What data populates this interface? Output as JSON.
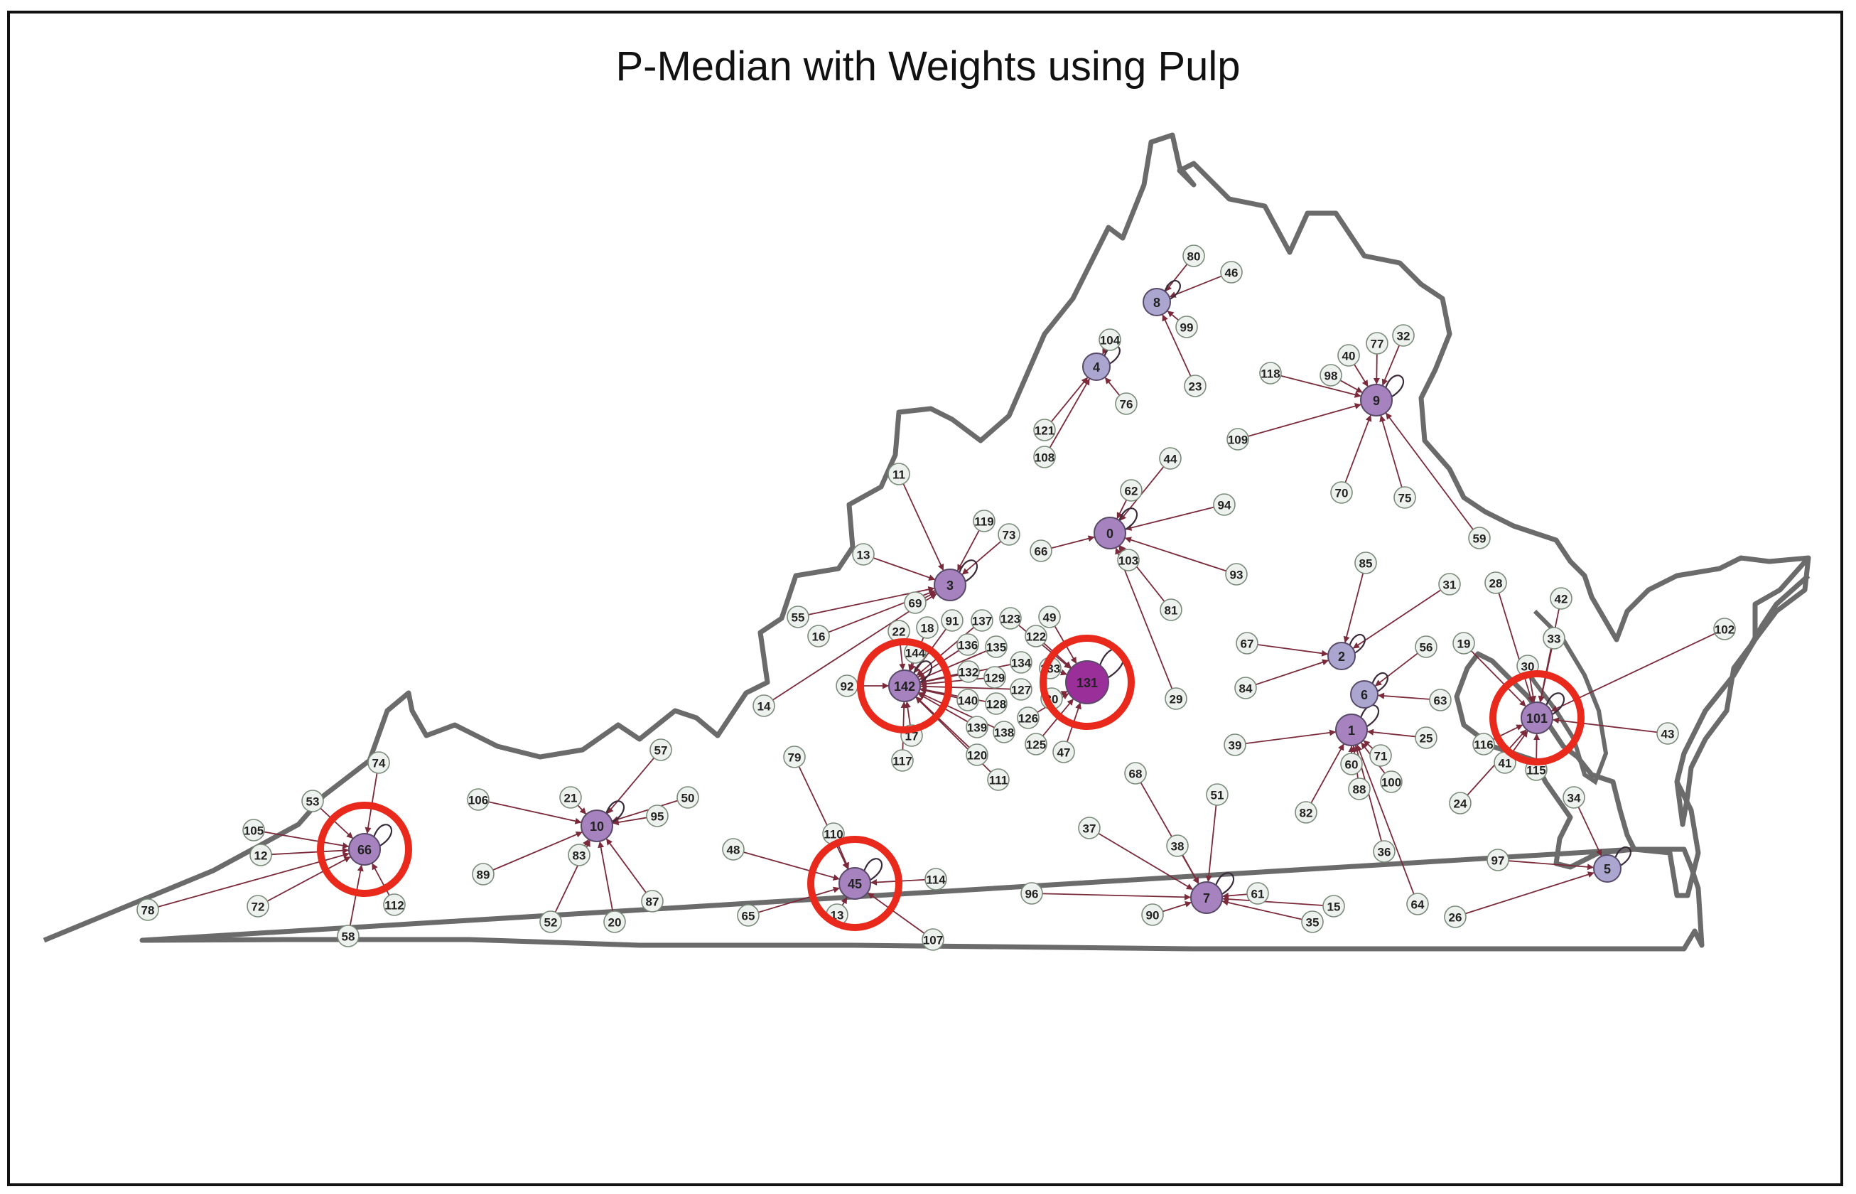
{
  "title": "P-Median with Weights using Pulp",
  "colors": {
    "outline": "#6b6b6b",
    "edge": "#7a2a3a",
    "node_fill": "#eef2ee",
    "node_stroke": "#7a8a7a",
    "highlight_ring": "#e8291c",
    "center_light": "#aaa6d0",
    "center_mid": "#a683bf",
    "center_dark": "#9a2f9a"
  },
  "centers": [
    {
      "id": "0",
      "shade": "mid"
    },
    {
      "id": "1",
      "shade": "mid"
    },
    {
      "id": "2",
      "shade": "light"
    },
    {
      "id": "3",
      "shade": "mid"
    },
    {
      "id": "4",
      "shade": "light"
    },
    {
      "id": "5",
      "shade": "light"
    },
    {
      "id": "6",
      "shade": "light"
    },
    {
      "id": "7",
      "shade": "mid"
    },
    {
      "id": "8",
      "shade": "light"
    },
    {
      "id": "9",
      "shade": "mid"
    },
    {
      "id": "10",
      "shade": "mid"
    },
    {
      "id": "45",
      "shade": "mid"
    },
    {
      "id": "66",
      "shade": "mid"
    },
    {
      "id": "101",
      "shade": "mid"
    },
    {
      "id": "131",
      "shade": "dark"
    },
    {
      "id": "142",
      "shade": "mid"
    }
  ],
  "highlighted_centers": [
    "66",
    "45",
    "142",
    "131",
    "101"
  ],
  "assignments": {
    "0": [
      "62",
      "44",
      "94",
      "66",
      "93",
      "103",
      "81",
      "29"
    ],
    "1": [
      "39",
      "71",
      "25",
      "60",
      "88",
      "100",
      "82",
      "36",
      "64"
    ],
    "2": [
      "85",
      "31",
      "67",
      "84"
    ],
    "3": [
      "11",
      "119",
      "73",
      "13",
      "55",
      "16",
      "69",
      "14"
    ],
    "4": [
      "104",
      "76",
      "121",
      "108"
    ],
    "5": [
      "34",
      "97",
      "26"
    ],
    "6": [
      "56",
      "63"
    ],
    "7": [
      "68",
      "51",
      "37",
      "38",
      "96",
      "90",
      "61",
      "15",
      "35"
    ],
    "8": [
      "80",
      "46",
      "99",
      "23"
    ],
    "9": [
      "77",
      "32",
      "40",
      "98",
      "118",
      "109",
      "70",
      "75",
      "59"
    ],
    "10": [
      "57",
      "106",
      "21",
      "50",
      "95",
      "89",
      "83",
      "52",
      "20",
      "87"
    ],
    "45": [
      "79",
      "110",
      "48",
      "114",
      "65",
      "13b",
      "107"
    ],
    "66": [
      "74",
      "53",
      "105",
      "12",
      "72",
      "78",
      "58",
      "112"
    ],
    "101": [
      "28",
      "42",
      "33",
      "102",
      "19",
      "30",
      "116",
      "41",
      "43",
      "115",
      "24"
    ],
    "131": [
      "49",
      "122",
      "123",
      "133",
      "30c",
      "47",
      "125",
      "126"
    ],
    "142": [
      "22",
      "18",
      "91",
      "137",
      "136",
      "135",
      "134",
      "144",
      "132",
      "129",
      "127",
      "92",
      "140",
      "128",
      "17",
      "117",
      "139",
      "138",
      "120",
      "111"
    ]
  },
  "labels": {
    "13b": "13",
    "30c": "30"
  }
}
